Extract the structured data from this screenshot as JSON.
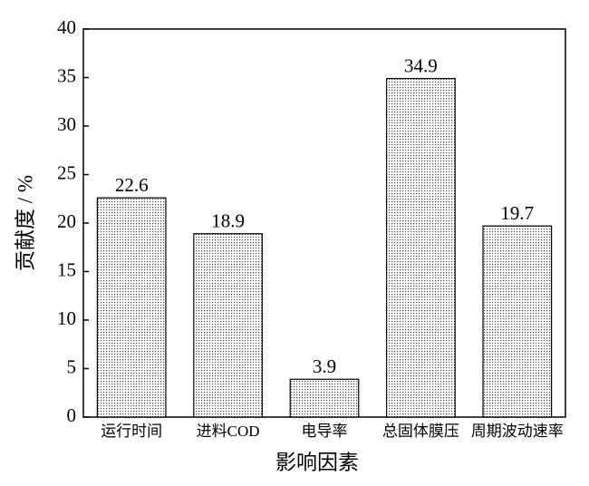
{
  "chart_data": {
    "type": "bar",
    "x_label": "影响因素",
    "y_label": "贡献度 / %",
    "categories": [
      "运行时间",
      "进料COD",
      "电导率",
      "总固体膜压",
      "周期波动速率"
    ],
    "values": [
      22.6,
      18.9,
      3.9,
      34.9,
      19.7
    ],
    "ylim": [
      0,
      40
    ],
    "yticks": [
      0,
      5,
      10,
      15,
      20,
      25,
      30,
      35,
      40
    ],
    "grid": false
  }
}
